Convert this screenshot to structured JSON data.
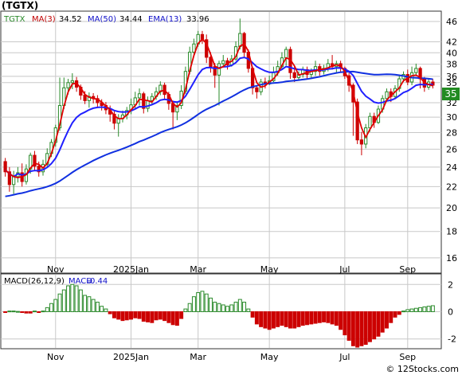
{
  "title": "(TGTX)",
  "footer": "© 12Stocks.com",
  "colors": {
    "up": "#2a8a2a",
    "down": "#cc0000",
    "ma3": "#e00000",
    "ma50": "#1030e0",
    "ema13": "#2020ff",
    "grid": "#c8c8c8",
    "price_box": "#228b22"
  },
  "chart_data": [
    {
      "type": "candlestick",
      "legend": {
        "ticker": "TGTX",
        "ma3_label": "MA(3)",
        "ma3": "34.52",
        "ma50_label": "MA(50)",
        "ma50": "34.44",
        "ema13_label": "EMA(13)",
        "ema13": "33.96"
      },
      "current_price": "35",
      "y_ticks": [
        16,
        18,
        20,
        22,
        24,
        26,
        28,
        30,
        32,
        35,
        36,
        38,
        40,
        42,
        46
      ],
      "ylim": [
        15,
        48
      ],
      "x_ticks": [
        {
          "label": "Nov",
          "i": 12
        },
        {
          "label": "2025Jan",
          "i": 30
        },
        {
          "label": "Mar",
          "i": 46
        },
        {
          "label": "May",
          "i": 63
        },
        {
          "label": "Jul",
          "i": 81
        },
        {
          "label": "Sep",
          "i": 96
        }
      ],
      "candles": [
        [
          24.6,
          23.5,
          25.0,
          23.0
        ],
        [
          23.5,
          22.2,
          24.0,
          21.5
        ],
        [
          22.2,
          23.0,
          23.6,
          21.3
        ],
        [
          23.0,
          23.4,
          24.0,
          22.4
        ],
        [
          23.4,
          22.5,
          24.4,
          22.0
        ],
        [
          22.5,
          23.8,
          24.3,
          22.2
        ],
        [
          23.8,
          25.3,
          25.6,
          23.3
        ],
        [
          25.3,
          24.1,
          25.8,
          23.6
        ],
        [
          24.1,
          23.5,
          24.6,
          23.0
        ],
        [
          23.5,
          24.3,
          24.8,
          23.1
        ],
        [
          24.3,
          25.5,
          26.1,
          24.0
        ],
        [
          25.5,
          26.8,
          27.2,
          25.1
        ],
        [
          26.8,
          28.6,
          29.0,
          26.3
        ],
        [
          28.6,
          31.6,
          35.8,
          28.2
        ],
        [
          31.6,
          34.2,
          35.8,
          31.1
        ],
        [
          34.2,
          35.0,
          35.6,
          33.2
        ],
        [
          35.0,
          35.3,
          36.5,
          34.0
        ],
        [
          35.3,
          34.3,
          35.9,
          33.6
        ],
        [
          34.3,
          33.1,
          34.7,
          32.4
        ],
        [
          33.1,
          32.3,
          33.7,
          31.8
        ],
        [
          32.3,
          32.9,
          33.5,
          31.3
        ],
        [
          32.9,
          32.6,
          33.4,
          31.9
        ],
        [
          32.6,
          32.0,
          33.1,
          31.4
        ],
        [
          32.0,
          31.6,
          32.5,
          30.9
        ],
        [
          31.6,
          31.0,
          32.1,
          30.4
        ],
        [
          31.0,
          30.4,
          31.6,
          29.4
        ],
        [
          30.4,
          29.2,
          30.8,
          28.4
        ],
        [
          29.2,
          29.8,
          30.4,
          27.5
        ],
        [
          29.8,
          30.3,
          30.9,
          29.3
        ],
        [
          30.3,
          30.9,
          31.4,
          29.7
        ],
        [
          30.9,
          31.7,
          32.6,
          30.4
        ],
        [
          31.7,
          32.7,
          33.6,
          31.1
        ],
        [
          32.7,
          33.3,
          34.1,
          31.6
        ],
        [
          33.3,
          31.2,
          33.6,
          30.5
        ],
        [
          31.2,
          32.3,
          32.9,
          30.7
        ],
        [
          32.3,
          32.9,
          33.4,
          31.8
        ],
        [
          32.9,
          33.6,
          34.3,
          32.4
        ],
        [
          33.6,
          34.6,
          35.2,
          33.1
        ],
        [
          34.6,
          33.2,
          35.0,
          32.5
        ],
        [
          33.2,
          31.9,
          33.6,
          31.0
        ],
        [
          31.9,
          30.7,
          32.3,
          28.4
        ],
        [
          30.7,
          31.6,
          32.1,
          29.6
        ],
        [
          31.6,
          33.7,
          34.6,
          31.1
        ],
        [
          33.7,
          36.8,
          37.6,
          33.3
        ],
        [
          36.8,
          40.1,
          41.1,
          36.3
        ],
        [
          40.1,
          41.6,
          42.6,
          39.6
        ],
        [
          41.6,
          43.4,
          44.1,
          41.1
        ],
        [
          43.4,
          42.4,
          44.1,
          41.6
        ],
        [
          42.4,
          39.2,
          43.4,
          38.2
        ],
        [
          39.2,
          37.6,
          40.1,
          36.6
        ],
        [
          37.6,
          36.2,
          38.2,
          34.2
        ],
        [
          36.2,
          38.1,
          38.6,
          31.6
        ],
        [
          38.1,
          38.6,
          39.6,
          37.6
        ],
        [
          38.6,
          37.9,
          39.1,
          37.1
        ],
        [
          37.9,
          38.9,
          39.6,
          37.6
        ],
        [
          38.9,
          41.1,
          42.1,
          38.6
        ],
        [
          41.1,
          43.6,
          46.6,
          40.6
        ],
        [
          43.6,
          40.1,
          43.9,
          39.1
        ],
        [
          40.1,
          37.3,
          40.6,
          36.6
        ],
        [
          37.3,
          34.2,
          37.6,
          33.2
        ],
        [
          34.2,
          33.6,
          34.6,
          32.6
        ],
        [
          33.6,
          35.1,
          35.6,
          33.1
        ],
        [
          35.1,
          34.8,
          35.8,
          34.1
        ],
        [
          34.8,
          35.3,
          36.1,
          34.6
        ],
        [
          35.3,
          36.6,
          37.6,
          35.1
        ],
        [
          36.6,
          37.6,
          38.6,
          36.1
        ],
        [
          37.6,
          39.1,
          40.1,
          37.1
        ],
        [
          39.1,
          40.6,
          41.1,
          37.8
        ],
        [
          40.6,
          36.6,
          41.1,
          35.6
        ],
        [
          36.6,
          35.8,
          37.6,
          35.1
        ],
        [
          35.8,
          36.3,
          36.8,
          35.3
        ],
        [
          36.3,
          37.1,
          37.6,
          35.8
        ],
        [
          37.1,
          36.3,
          37.6,
          35.6
        ],
        [
          36.3,
          36.8,
          37.3,
          35.6
        ],
        [
          36.8,
          37.6,
          38.6,
          36.1
        ],
        [
          37.6,
          36.8,
          38.1,
          36.1
        ],
        [
          36.8,
          37.3,
          37.9,
          36.3
        ],
        [
          37.3,
          38.1,
          38.9,
          36.8
        ],
        [
          38.1,
          37.6,
          39.6,
          37.1
        ],
        [
          37.6,
          38.1,
          38.6,
          36.6
        ],
        [
          38.1,
          37.3,
          38.6,
          36.6
        ],
        [
          37.3,
          36.1,
          37.6,
          35.6
        ],
        [
          36.1,
          34.6,
          36.6,
          33.6
        ],
        [
          34.6,
          32.1,
          34.9,
          27.6
        ],
        [
          32.1,
          27.1,
          32.6,
          26.6
        ],
        [
          27.1,
          26.6,
          28.1,
          25.3
        ],
        [
          26.6,
          28.6,
          29.1,
          26.1
        ],
        [
          28.6,
          30.1,
          30.6,
          28.1
        ],
        [
          30.1,
          29.3,
          30.6,
          28.6
        ],
        [
          29.3,
          31.1,
          31.6,
          29.1
        ],
        [
          31.1,
          32.6,
          33.1,
          30.6
        ],
        [
          32.6,
          33.6,
          34.1,
          32.1
        ],
        [
          33.6,
          32.9,
          34.1,
          32.1
        ],
        [
          32.9,
          34.1,
          34.6,
          32.6
        ],
        [
          34.1,
          35.6,
          36.1,
          33.6
        ],
        [
          35.6,
          36.3,
          36.8,
          35.1
        ],
        [
          36.3,
          35.1,
          37.1,
          34.6
        ],
        [
          35.1,
          36.6,
          37.6,
          34.6
        ],
        [
          36.6,
          37.3,
          38.1,
          36.1
        ],
        [
          37.3,
          35.6,
          37.6,
          34.1
        ],
        [
          35.6,
          34.3,
          35.9,
          33.6
        ],
        [
          34.3,
          35.1,
          35.6,
          33.9
        ],
        [
          35.1,
          34.6,
          35.6,
          34.1
        ]
      ],
      "ma3": [
        23.7,
        23.3,
        23.0,
        22.9,
        23.0,
        23.2,
        23.9,
        24.4,
        24.3,
        23.9,
        24.4,
        25.5,
        27.0,
        29.0,
        31.5,
        33.6,
        34.8,
        34.9,
        34.2,
        33.2,
        32.8,
        32.6,
        32.5,
        32.1,
        31.5,
        31.0,
        30.2,
        29.8,
        29.8,
        30.3,
        31.0,
        31.6,
        32.5,
        32.4,
        32.3,
        32.1,
        32.9,
        33.7,
        33.8,
        33.2,
        31.9,
        31.4,
        32.0,
        34.0,
        36.9,
        39.5,
        41.7,
        42.5,
        41.7,
        39.7,
        37.7,
        37.3,
        37.6,
        38.2,
        38.5,
        39.3,
        41.2,
        41.6,
        40.3,
        37.2,
        35.0,
        34.3,
        34.5,
        35.1,
        35.6,
        36.5,
        37.8,
        39.1,
        38.8,
        37.7,
        36.2,
        36.4,
        36.6,
        36.8,
        36.9,
        37.1,
        37.2,
        37.4,
        37.7,
        37.9,
        37.7,
        36.8,
        35.3,
        33.6,
        30.6,
        28.6,
        27.4,
        28.4,
        29.3,
        30.2,
        31.0,
        32.4,
        33.0,
        33.6,
        34.2,
        35.3,
        35.7,
        36.1,
        36.2,
        35.8,
        35.0,
        34.7,
        34.5
      ]
    },
    {
      "type": "bar",
      "label": "MACD(26,12,9)",
      "value_label": "MACD",
      "value": "0.44",
      "y_ticks": [
        -2,
        0,
        2
      ],
      "ylim": [
        -2.6,
        2.6
      ],
      "values": [
        -0.05,
        0.05,
        0.05,
        0.02,
        -0.05,
        -0.1,
        -0.1,
        0.05,
        -0.05,
        0.05,
        0.3,
        0.6,
        0.9,
        1.3,
        1.6,
        1.9,
        2.0,
        1.9,
        1.6,
        1.2,
        1.1,
        0.9,
        0.7,
        0.4,
        0.2,
        -0.15,
        -0.45,
        -0.55,
        -0.65,
        -0.6,
        -0.55,
        -0.45,
        -0.5,
        -0.7,
        -0.75,
        -0.8,
        -0.6,
        -0.55,
        -0.65,
        -0.8,
        -0.95,
        -1.0,
        -0.5,
        0.2,
        0.6,
        1.1,
        1.4,
        1.5,
        1.3,
        1.0,
        0.7,
        0.6,
        0.5,
        0.4,
        0.5,
        0.7,
        0.9,
        0.7,
        0.2,
        -0.4,
        -0.9,
        -1.1,
        -1.2,
        -1.3,
        -1.2,
        -1.1,
        -1.0,
        -1.1,
        -1.2,
        -1.2,
        -1.1,
        -1.0,
        -0.95,
        -0.9,
        -0.85,
        -0.8,
        -0.75,
        -0.8,
        -0.9,
        -1.0,
        -1.3,
        -1.7,
        -2.1,
        -2.5,
        -2.6,
        -2.5,
        -2.4,
        -2.2,
        -2.0,
        -1.8,
        -1.5,
        -1.2,
        -0.8,
        -0.4,
        -0.2,
        0.05,
        0.15,
        0.2,
        0.25,
        0.3,
        0.35,
        0.4,
        0.44
      ]
    }
  ]
}
